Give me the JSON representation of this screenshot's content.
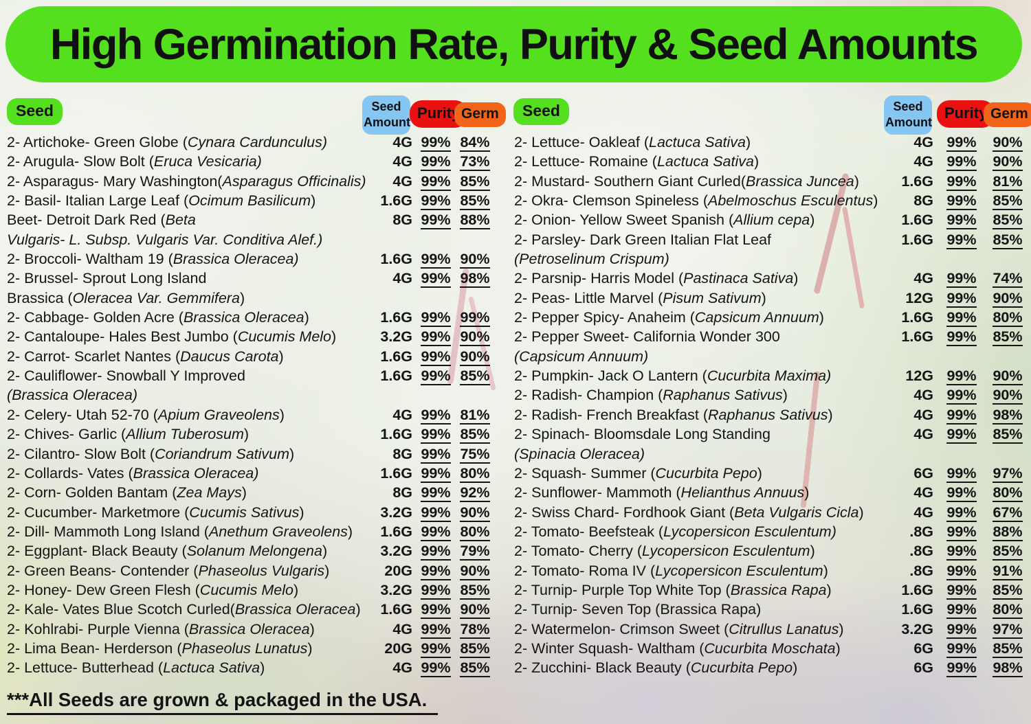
{
  "title": "High Germination Rate, Purity & Seed Amounts",
  "footer": "***All Seeds are grown & packaged in the USA.",
  "colors": {
    "green": "#54e01e",
    "blue": "#85c6f2",
    "red": "#ea1111",
    "orange": "#f26419",
    "text": "#141414"
  },
  "table": {
    "seed_header": "Seed",
    "amount_header": "Seed Amount",
    "purity_header": "Purity",
    "germ_header": "Germ"
  },
  "left_rows": [
    {
      "segs": [
        [
          "2- Artichoke- Green Globe (",
          0
        ],
        [
          "Cynara Cardunculus)",
          1
        ]
      ],
      "amt": "4G",
      "pur": "99%",
      "germ": "84%"
    },
    {
      "segs": [
        [
          "2- Arugula- Slow Bolt (",
          0
        ],
        [
          "Eruca Vesicaria)",
          1
        ]
      ],
      "amt": "4G",
      "pur": "99%",
      "germ": "73%"
    },
    {
      "segs": [
        [
          "2- Asparagus- Mary Washington(",
          0
        ],
        [
          "Asparagus Officinalis)",
          1
        ]
      ],
      "amt": "4G",
      "pur": "99%",
      "germ": "85%"
    },
    {
      "segs": [
        [
          "2- Basil- Italian Large Leaf (",
          0
        ],
        [
          "Ocimum Basilicum",
          1
        ],
        [
          ")",
          0
        ]
      ],
      "amt": "1.6G",
      "pur": "99%",
      "germ": "85%"
    },
    {
      "segs": [
        [
          "Beet- Detroit Dark Red (",
          0
        ],
        [
          "Beta",
          1
        ]
      ],
      "amt": "8G",
      "pur": "99%",
      "germ": "88%",
      "cont": [
        [
          "Vulgaris- L. Subsp. Vulgaris Var. Conditiva Alef.)",
          1
        ]
      ]
    },
    {
      "segs": [
        [
          "2- Broccoli- Waltham 19 (",
          0
        ],
        [
          "Brassica Oleracea)",
          1
        ]
      ],
      "amt": "1.6G",
      "pur": "99%",
      "germ": "90%"
    },
    {
      "segs": [
        [
          "2- Brussel- Sprout Long Island",
          0
        ]
      ],
      "amt": "4G",
      "pur": "99%",
      "germ": "98%",
      "cont": [
        [
          "Brassica (",
          0
        ],
        [
          "Oleracea Var. Gemmifera",
          1
        ],
        [
          ")",
          0
        ]
      ]
    },
    {
      "segs": [
        [
          "2- Cabbage- Golden Acre (",
          0
        ],
        [
          "Brassica Oleracea",
          1
        ],
        [
          ")",
          0
        ]
      ],
      "amt": "1.6G",
      "pur": "99%",
      "germ": "99%"
    },
    {
      "segs": [
        [
          "2- Cantaloupe- Hales Best Jumbo (",
          0
        ],
        [
          "Cucumis Melo",
          1
        ],
        [
          ")",
          0
        ]
      ],
      "amt": "3.2G",
      "pur": "99%",
      "germ": "90%"
    },
    {
      "segs": [
        [
          "2- Carrot- Scarlet Nantes (",
          0
        ],
        [
          "Daucus Carota",
          1
        ],
        [
          ")",
          0
        ]
      ],
      "amt": "1.6G",
      "pur": "99%",
      "germ": "90%"
    },
    {
      "segs": [
        [
          "2- Cauliflower- Snowball Y Improved",
          0
        ]
      ],
      "amt": "1.6G",
      "pur": "99%",
      "germ": "85%",
      "cont": [
        [
          "(Brassica Oleracea)",
          1
        ]
      ]
    },
    {
      "segs": [
        [
          "2- Celery- Utah 52-70 (",
          0
        ],
        [
          "Apium Graveolens",
          1
        ],
        [
          ")",
          0
        ]
      ],
      "amt": "4G",
      "pur": "99%",
      "germ": "81%"
    },
    {
      "segs": [
        [
          "2- Chives- Garlic (",
          0
        ],
        [
          "Allium Tuberosum",
          1
        ],
        [
          ")",
          0
        ]
      ],
      "amt": "1.6G",
      "pur": "99%",
      "germ": "85%"
    },
    {
      "segs": [
        [
          "2- Cilantro- Slow Bolt (",
          0
        ],
        [
          "Coriandrum Sativum",
          1
        ],
        [
          ")",
          0
        ]
      ],
      "amt": "8G",
      "pur": "99%",
      "germ": "75%"
    },
    {
      "segs": [
        [
          "2- Collards- Vates (",
          0
        ],
        [
          "Brassica Oleracea)",
          1
        ]
      ],
      "amt": "1.6G",
      "pur": "99%",
      "germ": "80%"
    },
    {
      "segs": [
        [
          "2- Corn- Golden Bantam (",
          0
        ],
        [
          "Zea Mays",
          1
        ],
        [
          ")",
          0
        ]
      ],
      "amt": "8G",
      "pur": "99%",
      "germ": "92%"
    },
    {
      "segs": [
        [
          "2- Cucumber- Marketmore (",
          0
        ],
        [
          "Cucumis Sativus",
          1
        ],
        [
          ")",
          0
        ]
      ],
      "amt": "3.2G",
      "pur": "99%",
      "germ": "90%"
    },
    {
      "segs": [
        [
          "2- Dill- Mammoth Long Island (",
          0
        ],
        [
          "Anethum Graveolens",
          1
        ],
        [
          ")",
          0
        ]
      ],
      "amt": "1.6G",
      "pur": "99%",
      "germ": "80%"
    },
    {
      "segs": [
        [
          "2- Eggplant- Black Beauty (",
          0
        ],
        [
          "Solanum Melongena",
          1
        ],
        [
          ")",
          0
        ]
      ],
      "amt": "3.2G",
      "pur": "99%",
      "germ": "79%"
    },
    {
      "segs": [
        [
          "2- Green Beans- Contender (",
          0
        ],
        [
          "Phaseolus Vulgaris",
          1
        ],
        [
          ")",
          0
        ]
      ],
      "amt": "20G",
      "pur": "99%",
      "germ": "90%"
    },
    {
      "segs": [
        [
          "2- Honey- Dew Green Flesh (",
          0
        ],
        [
          "Cucumis Melo",
          1
        ],
        [
          ")",
          0
        ]
      ],
      "amt": "3.2G",
      "pur": "99%",
      "germ": "85%"
    },
    {
      "segs": [
        [
          "2- Kale- Vates Blue Scotch Curled(",
          0
        ],
        [
          "Brassica Oleracea",
          1
        ],
        [
          ")",
          0
        ]
      ],
      "amt": "1.6G",
      "pur": "99%",
      "germ": "90%"
    },
    {
      "segs": [
        [
          "2- Kohlrabi- Purple Vienna (",
          0
        ],
        [
          "Brassica Oleracea",
          1
        ],
        [
          ")",
          0
        ]
      ],
      "amt": "4G",
      "pur": "99%",
      "germ": "78%"
    },
    {
      "segs": [
        [
          "2- Lima Bean- Herderson (",
          0
        ],
        [
          "Phaseolus Lunatus",
          1
        ],
        [
          ")",
          0
        ]
      ],
      "amt": "20G",
      "pur": "99%",
      "germ": "85%"
    },
    {
      "segs": [
        [
          "2- Lettuce- Butterhead (",
          0
        ],
        [
          "Lactuca Sativa",
          1
        ],
        [
          ")",
          0
        ]
      ],
      "amt": "4G",
      "pur": "99%",
      "germ": "85%"
    }
  ],
  "right_rows": [
    {
      "segs": [
        [
          "2- Lettuce- Oakleaf (",
          0
        ],
        [
          "Lactuca Sativa",
          1
        ],
        [
          ")",
          0
        ]
      ],
      "amt": "4G",
      "pur": "99%",
      "germ": "90%"
    },
    {
      "segs": [
        [
          "2- Lettuce- Romaine (",
          0
        ],
        [
          "Lactuca Sativa",
          1
        ],
        [
          ")",
          0
        ]
      ],
      "amt": "4G",
      "pur": "99%",
      "germ": "90%"
    },
    {
      "segs": [
        [
          "2- Mustard-  Southern Giant Curled(",
          0
        ],
        [
          "Brassica Juncea",
          1
        ],
        [
          ")",
          0
        ]
      ],
      "amt": "1.6G",
      "pur": "99%",
      "germ": "81%"
    },
    {
      "segs": [
        [
          "2- Okra- Clemson Spineless (",
          0
        ],
        [
          "Abelmoschus Esculentus",
          1
        ],
        [
          ")",
          0
        ]
      ],
      "amt": "8G",
      "pur": "99%",
      "germ": "85%"
    },
    {
      "segs": [
        [
          "2- Onion- Yellow Sweet Spanish (",
          0
        ],
        [
          "Allium cepa",
          1
        ],
        [
          ")",
          0
        ]
      ],
      "amt": "1.6G",
      "pur": "99%",
      "germ": "85%"
    },
    {
      "segs": [
        [
          "2- Parsley- Dark Green Italian Flat Leaf",
          0
        ]
      ],
      "amt": "1.6G",
      "pur": "99%",
      "germ": "85%",
      "cont": [
        [
          "(Petroselinum Crispum)",
          1
        ]
      ]
    },
    {
      "segs": [
        [
          "2- Parsnip- Harris Model (",
          0
        ],
        [
          "Pastinaca Sativa",
          1
        ],
        [
          ")",
          0
        ]
      ],
      "amt": "4G",
      "pur": "99%",
      "germ": "74%"
    },
    {
      "segs": [
        [
          "2- Peas- Little Marvel (",
          0
        ],
        [
          "Pisum Sativum",
          1
        ],
        [
          ")",
          0
        ]
      ],
      "amt": "12G",
      "pur": "99%",
      "germ": "90%"
    },
    {
      "segs": [
        [
          "2- Pepper Spicy- Anaheim (",
          0
        ],
        [
          "Capsicum Annuum",
          1
        ],
        [
          ")",
          0
        ]
      ],
      "amt": "1.6G",
      "pur": "99%",
      "germ": "80%"
    },
    {
      "segs": [
        [
          "2- Pepper Sweet- California Wonder 300",
          0
        ]
      ],
      "amt": "1.6G",
      "pur": "99%",
      "germ": "85%",
      "cont": [
        [
          "(Capsicum Annuum)",
          1
        ]
      ]
    },
    {
      "segs": [
        [
          "2- Pumpkin- Jack O Lantern (",
          0
        ],
        [
          "Cucurbita Maxima)",
          1
        ]
      ],
      "amt": "12G",
      "pur": "99%",
      "germ": "90%"
    },
    {
      "segs": [
        [
          "2- Radish- Champion (",
          0
        ],
        [
          "Raphanus Sativus",
          1
        ],
        [
          ")",
          0
        ]
      ],
      "amt": "4G",
      "pur": "99%",
      "germ": "90%"
    },
    {
      "segs": [
        [
          "2- Radish- French Breakfast (",
          0
        ],
        [
          "Raphanus Sativus",
          1
        ],
        [
          ")",
          0
        ]
      ],
      "amt": "4G",
      "pur": "99%",
      "germ": "98%"
    },
    {
      "segs": [
        [
          "2- Spinach- Bloomsdale Long Standing",
          0
        ]
      ],
      "amt": "4G",
      "pur": "99%",
      "germ": "85%",
      "cont": [
        [
          "(Spinacia Oleracea)",
          1
        ]
      ]
    },
    {
      "segs": [
        [
          "2- Squash- Summer (",
          0
        ],
        [
          "Cucurbita Pepo",
          1
        ],
        [
          ")",
          0
        ]
      ],
      "amt": "6G",
      "pur": "99%",
      "germ": "97%"
    },
    {
      "segs": [
        [
          "2- Sunflower- Mammoth (",
          0
        ],
        [
          "Helianthus Annuus",
          1
        ],
        [
          ")",
          0
        ]
      ],
      "amt": "4G",
      "pur": "99%",
      "germ": "80%"
    },
    {
      "segs": [
        [
          "2- Swiss Chard- Fordhook Giant (",
          0
        ],
        [
          "Beta Vulgaris Cicla",
          1
        ],
        [
          ")",
          0
        ]
      ],
      "amt": "4G",
      "pur": "99%",
      "germ": "67%"
    },
    {
      "segs": [
        [
          "2- Tomato- Beefsteak (",
          0
        ],
        [
          "Lycopersicon Esculentum)",
          1
        ]
      ],
      "amt": ".8G",
      "pur": "99%",
      "germ": "88%"
    },
    {
      "segs": [
        [
          "2- Tomato- Cherry (",
          0
        ],
        [
          "Lycopersicon Esculentum",
          1
        ],
        [
          ")",
          0
        ]
      ],
      "amt": ".8G",
      "pur": "99%",
      "germ": "85%"
    },
    {
      "segs": [
        [
          "2- Tomato- Roma IV  (",
          0
        ],
        [
          "Lycopersicon Esculentum",
          1
        ],
        [
          ")",
          0
        ]
      ],
      "amt": ".8G",
      "pur": "99%",
      "germ": "91%"
    },
    {
      "segs": [
        [
          "2- Turnip- Purple Top White Top (",
          0
        ],
        [
          "Brassica Rapa",
          1
        ],
        [
          ")",
          0
        ]
      ],
      "amt": "1.6G",
      "pur": "99%",
      "germ": "85%"
    },
    {
      "segs": [
        [
          "2- Turnip- Seven Top (Brassica Rapa)",
          0
        ]
      ],
      "amt": "1.6G",
      "pur": "99%",
      "germ": "80%"
    },
    {
      "segs": [
        [
          "2- Watermelon- Crimson Sweet (",
          0
        ],
        [
          "Citrullus Lanatus",
          1
        ],
        [
          ")",
          0
        ]
      ],
      "amt": "3.2G",
      "pur": "99%",
      "germ": "97%"
    },
    {
      "segs": [
        [
          "2- Winter Squash- Waltham (",
          0
        ],
        [
          "Cucurbita Moschata",
          1
        ],
        [
          ")",
          0
        ]
      ],
      "amt": "6G",
      "pur": "99%",
      "germ": "85%"
    },
    {
      "segs": [
        [
          "2- Zucchini-  Black Beauty (",
          0
        ],
        [
          "Cucurbita Pepo",
          1
        ],
        [
          ")",
          0
        ]
      ],
      "amt": "6G",
      "pur": "99%",
      "germ": "98%"
    }
  ]
}
